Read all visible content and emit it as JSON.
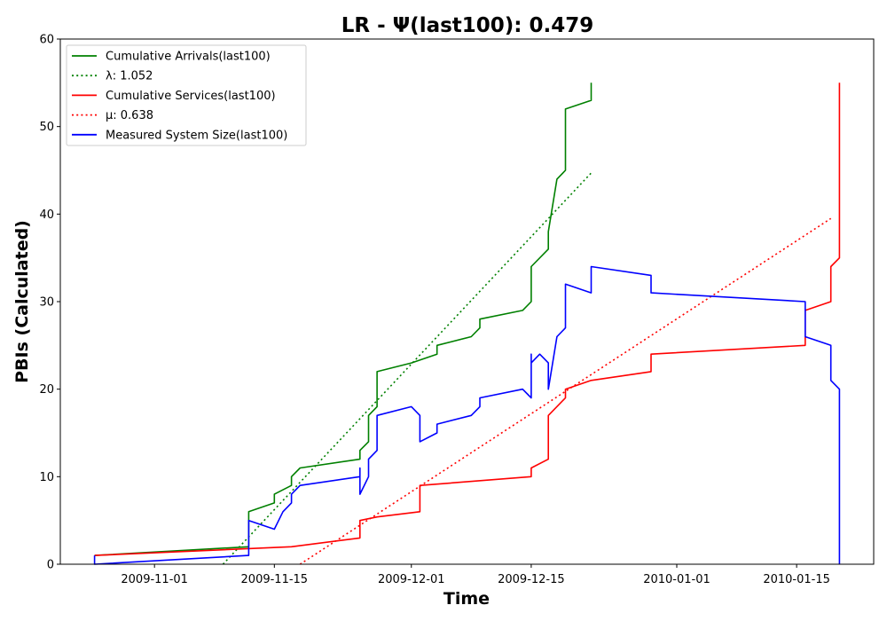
{
  "chart_data": {
    "type": "line",
    "title": "LR -  Ψ(last100): 0.479",
    "xlabel": "Time",
    "ylabel": "PBIs (Calculated)",
    "x_axis": {
      "type": "date",
      "range": [
        "2009-10-21",
        "2010-01-24"
      ],
      "ticks": [
        "2009-11-01",
        "2009-11-15",
        "2009-12-01",
        "2009-12-15",
        "2010-01-01",
        "2010-01-15"
      ]
    },
    "ylim": [
      0,
      60
    ],
    "yticks": [
      0,
      10,
      20,
      30,
      40,
      50,
      60
    ],
    "grid": false,
    "legend_position": "upper left",
    "series": [
      {
        "name": "Cumulative Arrivals(last100)",
        "color": "#008000",
        "style": "solid",
        "points": [
          [
            "2009-10-25",
            1
          ],
          [
            "2009-11-12",
            2
          ],
          [
            "2009-11-12",
            6
          ],
          [
            "2009-11-15",
            7
          ],
          [
            "2009-11-15",
            8
          ],
          [
            "2009-11-17",
            9
          ],
          [
            "2009-11-17",
            10
          ],
          [
            "2009-11-18",
            11
          ],
          [
            "2009-11-25",
            12
          ],
          [
            "2009-11-25",
            13
          ],
          [
            "2009-11-26",
            14
          ],
          [
            "2009-11-26",
            17
          ],
          [
            "2009-11-27",
            18
          ],
          [
            "2009-11-27",
            22
          ],
          [
            "2009-12-01",
            23
          ],
          [
            "2009-12-04",
            24
          ],
          [
            "2009-12-04",
            25
          ],
          [
            "2009-12-08",
            26
          ],
          [
            "2009-12-09",
            27
          ],
          [
            "2009-12-09",
            28
          ],
          [
            "2009-12-14",
            29
          ],
          [
            "2009-12-15",
            30
          ],
          [
            "2009-12-15",
            34
          ],
          [
            "2009-12-17",
            36
          ],
          [
            "2009-12-17",
            38
          ],
          [
            "2009-12-18",
            44
          ],
          [
            "2009-12-19",
            45
          ],
          [
            "2009-12-19",
            52
          ],
          [
            "2009-12-22",
            53
          ],
          [
            "2009-12-22",
            55
          ]
        ]
      },
      {
        "name": "λ: 1.052",
        "color": "#008000",
        "style": "dotted",
        "points": [
          [
            "2009-11-09",
            0
          ],
          [
            "2009-12-22",
            44.7
          ]
        ]
      },
      {
        "name": "Cumulative Services(last100)",
        "color": "#ff0000",
        "style": "solid",
        "points": [
          [
            "2009-10-25",
            1
          ],
          [
            "2009-11-17",
            2
          ],
          [
            "2009-11-25",
            3
          ],
          [
            "2009-11-25",
            5
          ],
          [
            "2009-11-27",
            5.4
          ],
          [
            "2009-12-02",
            6
          ],
          [
            "2009-12-02",
            9
          ],
          [
            "2009-12-15",
            10
          ],
          [
            "2009-12-15",
            11
          ],
          [
            "2009-12-17",
            12
          ],
          [
            "2009-12-17",
            17
          ],
          [
            "2009-12-19",
            19
          ],
          [
            "2009-12-19",
            20
          ],
          [
            "2009-12-22",
            21
          ],
          [
            "2009-12-29",
            22
          ],
          [
            "2009-12-29",
            24
          ],
          [
            "2010-01-16",
            25
          ],
          [
            "2010-01-16",
            29
          ],
          [
            "2010-01-19",
            30
          ],
          [
            "2010-01-19",
            34
          ],
          [
            "2010-01-20",
            35
          ],
          [
            "2010-01-20",
            55
          ]
        ]
      },
      {
        "name": "μ: 0.638",
        "color": "#ff0000",
        "style": "dotted",
        "points": [
          [
            "2009-11-18",
            0
          ],
          [
            "2010-01-19",
            39.5
          ]
        ]
      },
      {
        "name": "Measured System Size(last100)",
        "color": "#0000ff",
        "style": "solid",
        "points": [
          [
            "2009-10-25",
            1
          ],
          [
            "2009-10-25",
            0
          ],
          [
            "2009-11-12",
            1
          ],
          [
            "2009-11-12",
            5
          ],
          [
            "2009-11-15",
            4
          ],
          [
            "2009-11-16",
            6
          ],
          [
            "2009-11-17",
            7
          ],
          [
            "2009-11-17",
            8
          ],
          [
            "2009-11-18",
            9
          ],
          [
            "2009-11-25",
            10
          ],
          [
            "2009-11-25",
            11
          ],
          [
            "2009-11-25",
            8
          ],
          [
            "2009-11-26",
            10
          ],
          [
            "2009-11-26",
            12
          ],
          [
            "2009-11-27",
            13
          ],
          [
            "2009-11-27",
            17
          ],
          [
            "2009-12-01",
            18
          ],
          [
            "2009-12-02",
            17
          ],
          [
            "2009-12-02",
            14
          ],
          [
            "2009-12-04",
            15
          ],
          [
            "2009-12-04",
            16
          ],
          [
            "2009-12-08",
            17
          ],
          [
            "2009-12-09",
            18
          ],
          [
            "2009-12-09",
            19
          ],
          [
            "2009-12-14",
            20
          ],
          [
            "2009-12-15",
            19
          ],
          [
            "2009-12-15",
            24
          ],
          [
            "2009-12-15",
            23
          ],
          [
            "2009-12-16",
            24
          ],
          [
            "2009-12-17",
            23
          ],
          [
            "2009-12-17",
            20
          ],
          [
            "2009-12-18",
            26
          ],
          [
            "2009-12-19",
            27
          ],
          [
            "2009-12-19",
            30
          ],
          [
            "2009-12-19",
            29
          ],
          [
            "2009-12-19",
            32
          ],
          [
            "2009-12-22",
            31
          ],
          [
            "2009-12-22",
            34
          ],
          [
            "2009-12-29",
            33
          ],
          [
            "2009-12-29",
            31
          ],
          [
            "2010-01-16",
            30
          ],
          [
            "2010-01-16",
            26
          ],
          [
            "2010-01-19",
            25
          ],
          [
            "2010-01-19",
            21
          ],
          [
            "2010-01-20",
            20
          ],
          [
            "2010-01-20",
            0
          ]
        ]
      }
    ],
    "legend": [
      {
        "label": "Cumulative Arrivals(last100)",
        "color": "#008000",
        "style": "solid"
      },
      {
        "label": "λ: 1.052",
        "color": "#008000",
        "style": "dotted"
      },
      {
        "label": "Cumulative Services(last100)",
        "color": "#ff0000",
        "style": "solid"
      },
      {
        "label": "μ: 0.638",
        "color": "#ff0000",
        "style": "dotted"
      },
      {
        "label": "Measured System Size(last100)",
        "color": "#0000ff",
        "style": "solid"
      }
    ]
  }
}
